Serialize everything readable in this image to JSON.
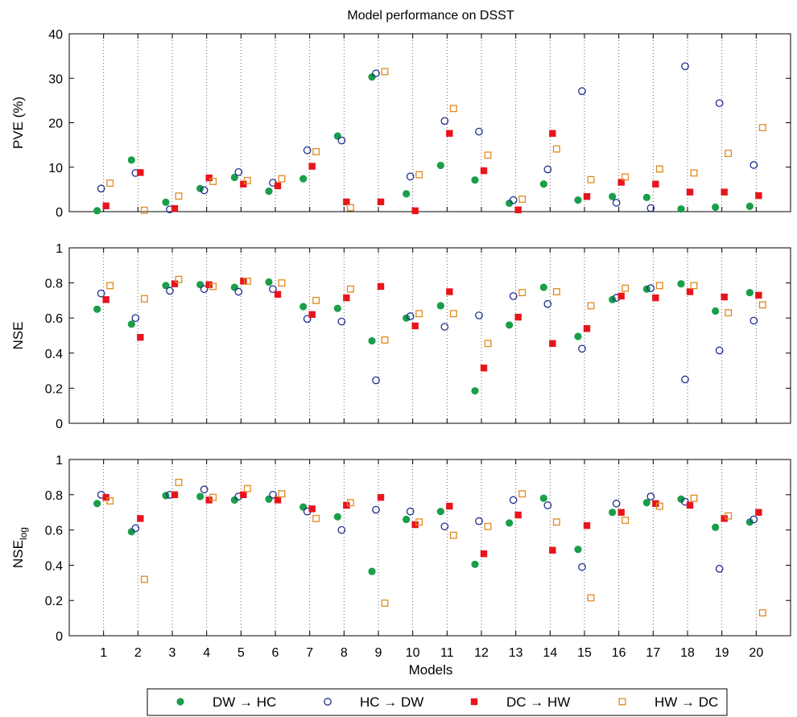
{
  "chart_data": {
    "type": "scatter",
    "title": "Model performance on DSST",
    "xlabel": "Models",
    "categories": [
      "1",
      "2",
      "3",
      "4",
      "5",
      "6",
      "7",
      "8",
      "9",
      "10",
      "11",
      "12",
      "13",
      "14",
      "15",
      "16",
      "17",
      "18",
      "19",
      "20"
    ],
    "series_styles": [
      {
        "name": "DW → HC",
        "color": "#1a9e4a",
        "marker": "filled-circle"
      },
      {
        "name": "HC → DW",
        "color": "#1f2f8f",
        "marker": "open-circle"
      },
      {
        "name": "DC → HW",
        "color": "#e8141c",
        "marker": "filled-square"
      },
      {
        "name": "HW → DC",
        "color": "#e08a1e",
        "marker": "open-square"
      }
    ],
    "panels": [
      {
        "ylabel": "PVE (%)",
        "ylabel_sub": "",
        "ylim": [
          0,
          40
        ],
        "yticks": [
          "0",
          "10",
          "20",
          "30",
          "40"
        ],
        "series": [
          {
            "name": "DW → HC",
            "values": [
              0.2,
              11.6,
              2.1,
              5.2,
              7.7,
              4.6,
              7.4,
              17.0,
              30.3,
              4.0,
              10.4,
              7.1,
              1.9,
              6.2,
              2.6,
              3.4,
              3.2,
              0.6,
              1.0,
              1.2
            ]
          },
          {
            "name": "HC → DW",
            "values": [
              5.2,
              8.7,
              0.5,
              4.8,
              8.9,
              6.5,
              13.8,
              16.0,
              31.1,
              7.9,
              20.4,
              18.0,
              2.6,
              9.5,
              27.1,
              2.0,
              0.8,
              32.7,
              24.4,
              10.5
            ]
          },
          {
            "name": "DC → HW",
            "values": [
              1.3,
              8.8,
              0.7,
              7.6,
              6.2,
              5.8,
              10.2,
              2.2,
              2.2,
              0.2,
              17.6,
              9.2,
              0.4,
              17.6,
              3.4,
              6.6,
              6.2,
              4.4,
              4.4,
              3.6
            ]
          },
          {
            "name": "HW → DC",
            "values": [
              6.4,
              0.3,
              3.5,
              6.8,
              7.0,
              7.4,
              13.5,
              0.9,
              31.5,
              8.3,
              23.2,
              12.7,
              2.8,
              14.1,
              7.2,
              7.8,
              9.6,
              8.7,
              13.1,
              18.9
            ]
          }
        ]
      },
      {
        "ylabel": "NSE",
        "ylabel_sub": "",
        "ylim": [
          0,
          1
        ],
        "yticks": [
          "0",
          "0.2",
          "0.4",
          "0.6",
          "0.8",
          "1"
        ],
        "series": [
          {
            "name": "DW → HC",
            "values": [
              0.65,
              0.565,
              0.785,
              0.79,
              0.775,
              0.805,
              0.665,
              0.655,
              0.47,
              0.6,
              0.67,
              0.185,
              0.56,
              0.775,
              0.495,
              0.705,
              0.765,
              0.795,
              0.64,
              0.745
            ]
          },
          {
            "name": "HC → DW",
            "values": [
              0.74,
              0.6,
              0.755,
              0.765,
              0.75,
              0.765,
              0.595,
              0.58,
              0.245,
              0.61,
              0.55,
              0.615,
              0.725,
              0.68,
              0.425,
              0.715,
              0.77,
              0.25,
              0.415,
              0.585
            ]
          },
          {
            "name": "DC → HW",
            "values": [
              0.705,
              0.49,
              0.795,
              0.79,
              0.81,
              0.735,
              0.62,
              0.715,
              0.78,
              0.555,
              0.75,
              0.315,
              0.605,
              0.455,
              0.54,
              0.725,
              0.715,
              0.75,
              0.72,
              0.73
            ]
          },
          {
            "name": "HW → DC",
            "values": [
              0.785,
              0.71,
              0.82,
              0.78,
              0.81,
              0.8,
              0.7,
              0.765,
              0.475,
              0.625,
              0.625,
              0.455,
              0.745,
              0.75,
              0.67,
              0.77,
              0.785,
              0.785,
              0.63,
              0.675
            ]
          }
        ]
      },
      {
        "ylabel": "NSE",
        "ylabel_sub": "log",
        "ylim": [
          0,
          1
        ],
        "yticks": [
          "0",
          "0.2",
          "0.4",
          "0.6",
          "0.8",
          "1"
        ],
        "series": [
          {
            "name": "DW → HC",
            "values": [
              0.75,
              0.59,
              0.795,
              0.79,
              0.77,
              0.775,
              0.73,
              0.675,
              0.365,
              0.66,
              0.705,
              0.405,
              0.64,
              0.78,
              0.49,
              0.7,
              0.755,
              0.775,
              0.615,
              0.645
            ]
          },
          {
            "name": "HC → DW",
            "values": [
              0.8,
              0.61,
              0.8,
              0.83,
              0.79,
              0.8,
              0.705,
              0.6,
              0.715,
              0.705,
              0.62,
              0.65,
              0.77,
              0.74,
              0.39,
              0.75,
              0.79,
              0.76,
              0.38,
              0.66
            ]
          },
          {
            "name": "DC → HW",
            "values": [
              0.785,
              0.665,
              0.8,
              0.77,
              0.8,
              0.77,
              0.72,
              0.74,
              0.785,
              0.63,
              0.735,
              0.465,
              0.685,
              0.485,
              0.625,
              0.7,
              0.75,
              0.74,
              0.665,
              0.7
            ]
          },
          {
            "name": "HW → DC",
            "values": [
              0.765,
              0.32,
              0.87,
              0.785,
              0.835,
              0.805,
              0.665,
              0.755,
              0.185,
              0.645,
              0.57,
              0.62,
              0.805,
              0.645,
              0.215,
              0.655,
              0.735,
              0.78,
              0.68,
              0.13
            ]
          }
        ]
      }
    ],
    "grid": {
      "x_vertical_dotted": true,
      "y": false
    },
    "legend": {
      "position": "bottom-center",
      "orientation": "horizontal",
      "boxed": true
    }
  }
}
